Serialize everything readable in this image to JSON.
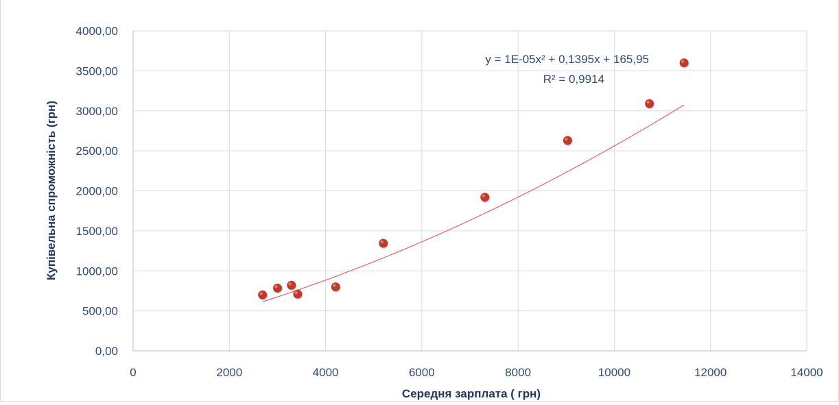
{
  "chart_data": {
    "type": "scatter",
    "xlabel": "Середня зарплата ( грн)",
    "ylabel": "Купівельна спроможність (грн)",
    "xlim": [
      0,
      14000
    ],
    "ylim": [
      0,
      4000
    ],
    "x_ticks": [
      0,
      2000,
      4000,
      6000,
      8000,
      10000,
      12000,
      14000
    ],
    "x_tick_labels": [
      "0",
      "2000",
      "4000",
      "6000",
      "8000",
      "10000",
      "12000",
      "14000"
    ],
    "y_ticks": [
      0,
      500,
      1000,
      1500,
      2000,
      2500,
      3000,
      3500,
      4000
    ],
    "y_tick_labels": [
      "0,00",
      "500,00",
      "1000,00",
      "1500,00",
      "2000,00",
      "2500,00",
      "3000,00",
      "3500,00",
      "4000,00"
    ],
    "grid": "vertical and horizontal",
    "series": [
      {
        "color": "#c0392b",
        "points": [
          {
            "x": 2690,
            "y": 700
          },
          {
            "x": 3000,
            "y": 785
          },
          {
            "x": 3290,
            "y": 820
          },
          {
            "x": 3420,
            "y": 710
          },
          {
            "x": 4210,
            "y": 800
          },
          {
            "x": 5200,
            "y": 1345
          },
          {
            "x": 7310,
            "y": 1920
          },
          {
            "x": 9030,
            "y": 2630
          },
          {
            "x": 10730,
            "y": 3090
          },
          {
            "x": 11450,
            "y": 3600
          }
        ]
      }
    ],
    "trendline": {
      "type": "polynomial",
      "coefficients": [
        1e-05,
        0.1395,
        165.95
      ],
      "x_range": [
        2690,
        11450
      ],
      "color": "#e06666",
      "equation_label": "y = 1E-05x² + 0,1395x + 165,95",
      "r2_label": "R² = 0,9914"
    }
  }
}
